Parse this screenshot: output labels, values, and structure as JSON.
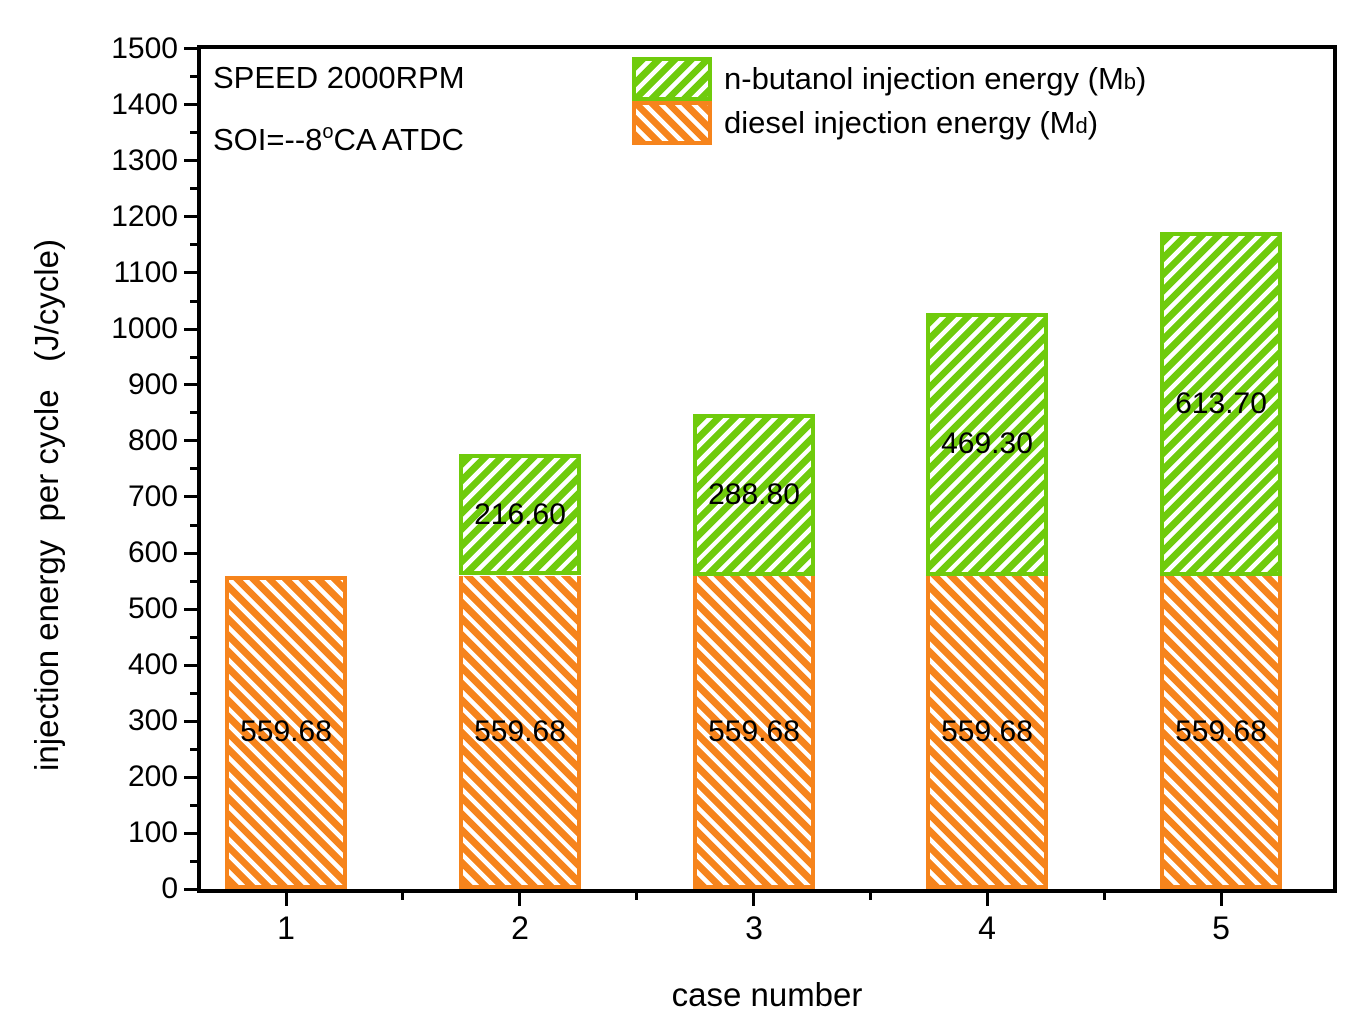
{
  "annotation": {
    "line1": "SPEED 2000RPM",
    "line2_prefix": "SOI=--8",
    "line2_sup": "o",
    "line2_suffix": "CA ATDC"
  },
  "legend": {
    "items": [
      {
        "id": "n-butanol",
        "text_before": "n-butanol injection energy (M",
        "sub": "b",
        "text_after": ")",
        "color": "#6FCB0C",
        "hatch": "/"
      },
      {
        "id": "diesel",
        "text_before": "diesel injection energy (M",
        "sub": "d",
        "text_after": ")",
        "color": "#F6841C",
        "hatch": "\\"
      }
    ]
  },
  "axes": {
    "xlabel": "case number",
    "ylabel": "injection energy  per cycle   (J/cycle)",
    "x_ticks": [
      "1",
      "2",
      "3",
      "4",
      "5"
    ],
    "y_ticks": [
      "0",
      "100",
      "200",
      "300",
      "400",
      "500",
      "600",
      "700",
      "800",
      "900",
      "1000",
      "1100",
      "1200",
      "1300",
      "1400",
      "1500"
    ]
  },
  "chart_data": {
    "type": "bar",
    "stacked": true,
    "title": "",
    "xlabel": "case number",
    "ylabel": "injection energy per cycle (J/cycle)",
    "categories": [
      1,
      2,
      3,
      4,
      5
    ],
    "series": [
      {
        "name": "diesel injection energy (Md)",
        "color": "#F6841C",
        "hatch": "\\",
        "values": [
          559.68,
          559.68,
          559.68,
          559.68,
          559.68
        ],
        "labels": [
          "559.68",
          "559.68",
          "559.68",
          "559.68",
          "559.68"
        ]
      },
      {
        "name": "n-butanol injection energy (Mb)",
        "color": "#6FCB0C",
        "hatch": "/",
        "values": [
          0,
          216.6,
          288.8,
          469.3,
          613.7
        ],
        "labels": [
          "",
          "216.60",
          "288.80",
          "469.30",
          "613.70"
        ]
      }
    ],
    "ylim": [
      0,
      1500
    ],
    "ytick_step": 100,
    "yminor_step": 50,
    "grid": false,
    "legend_position": "top-inside",
    "annotations": [
      "SPEED 2000RPM",
      "SOI=--8°CA ATDC"
    ]
  }
}
